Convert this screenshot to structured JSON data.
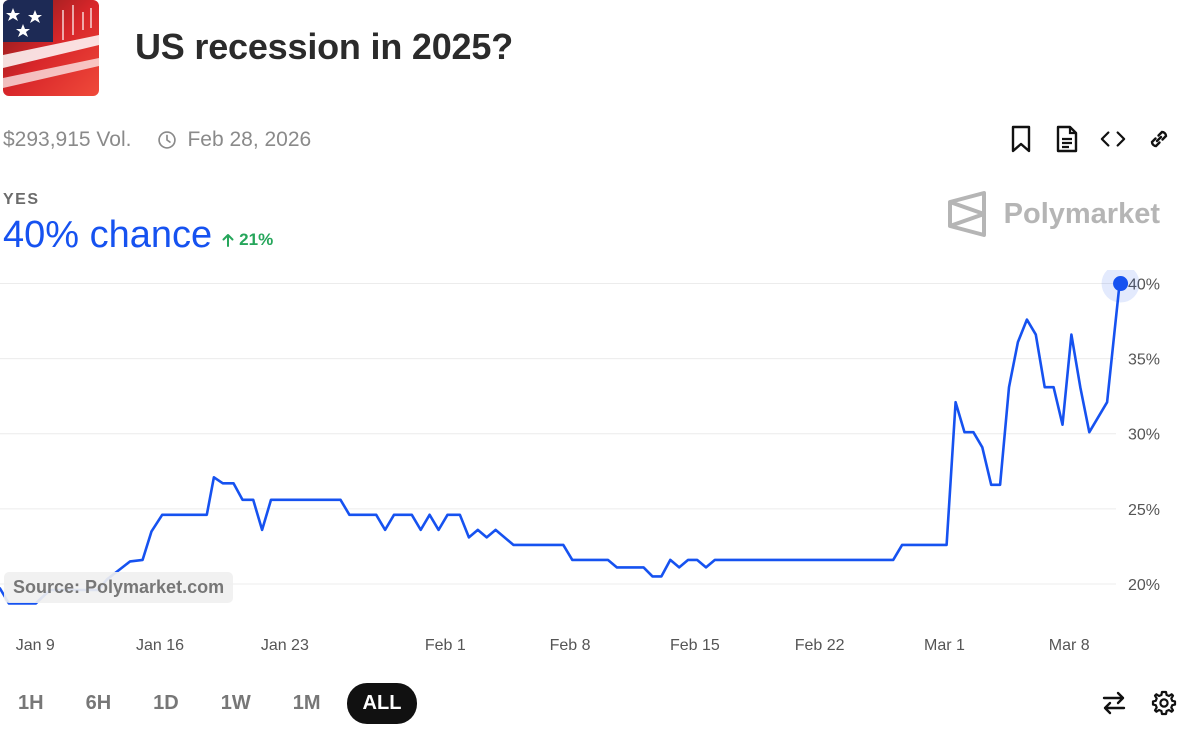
{
  "market": {
    "title": "US recession in 2025?",
    "volume": "$293,915 Vol.",
    "end_date": "Feb 28, 2026"
  },
  "toolbar": {
    "icons": [
      "bookmark-icon",
      "document-icon",
      "code-icon",
      "link-icon"
    ]
  },
  "outcome": {
    "label": "YES",
    "chance": "40% chance",
    "change": "21%",
    "colors": {
      "accent": "#1652f0",
      "positive": "#26a65b"
    }
  },
  "brand": {
    "name": "Polymarket"
  },
  "source": "Source: Polymarket.com",
  "ranges": {
    "items": [
      "1H",
      "6H",
      "1D",
      "1W",
      "1M",
      "ALL"
    ],
    "active": "ALL"
  },
  "bottom_tools": {
    "icons": [
      "swap-icon",
      "settings-icon"
    ]
  },
  "chart_data": {
    "type": "line",
    "y_tick_labels": [
      "20%",
      "25%",
      "30%",
      "35%",
      "40%"
    ],
    "y_ticks": [
      20,
      25,
      30,
      35,
      40
    ],
    "ylim": [
      17.6,
      40.9
    ],
    "x_tick_labels": [
      "Jan 9",
      "Jan 16",
      "Jan 23",
      "Feb 1",
      "Feb 8",
      "Feb 15",
      "Feb 22",
      "Mar 1",
      "Mar 8"
    ],
    "x_tick_days": [
      0,
      7,
      14,
      23,
      30,
      37,
      44,
      51,
      58
    ],
    "xlim_days": [
      -0.8,
      61.8
    ],
    "grid": true,
    "line_color": "#1652f0",
    "series": [
      {
        "points": [
          [
            -0.8,
            19.7
          ],
          [
            -0.3,
            18.7
          ],
          [
            1.2,
            18.7
          ],
          [
            2.0,
            19.6
          ],
          [
            4.7,
            19.6
          ],
          [
            5.2,
            20.3
          ],
          [
            6.5,
            21.5
          ],
          [
            7.2,
            21.6
          ],
          [
            7.7,
            23.5
          ],
          [
            8.3,
            24.6
          ],
          [
            10.4,
            24.6
          ],
          [
            10.8,
            24.6
          ],
          [
            11.2,
            27.1
          ],
          [
            11.7,
            26.7
          ],
          [
            12.3,
            26.7
          ],
          [
            12.8,
            25.6
          ],
          [
            13.4,
            25.6
          ],
          [
            13.9,
            23.6
          ],
          [
            14.4,
            25.6
          ],
          [
            18.3,
            25.6
          ],
          [
            18.8,
            24.6
          ],
          [
            20.3,
            24.6
          ],
          [
            20.8,
            23.6
          ],
          [
            21.3,
            24.6
          ],
          [
            22.3,
            24.6
          ],
          [
            22.8,
            23.6
          ],
          [
            23.3,
            24.6
          ],
          [
            23.8,
            23.6
          ],
          [
            24.3,
            24.6
          ],
          [
            25.0,
            24.6
          ],
          [
            25.5,
            23.1
          ],
          [
            26.0,
            23.6
          ],
          [
            26.5,
            23.1
          ],
          [
            27.0,
            23.6
          ],
          [
            28.0,
            22.6
          ],
          [
            30.8,
            22.6
          ],
          [
            31.3,
            21.6
          ],
          [
            33.3,
            21.6
          ],
          [
            33.8,
            21.1
          ],
          [
            35.3,
            21.1
          ],
          [
            35.8,
            20.5
          ],
          [
            36.3,
            20.5
          ],
          [
            36.8,
            21.6
          ],
          [
            37.3,
            21.1
          ],
          [
            37.8,
            21.6
          ],
          [
            38.3,
            21.6
          ],
          [
            38.8,
            21.1
          ],
          [
            39.3,
            21.6
          ],
          [
            49.3,
            21.6
          ],
          [
            49.8,
            22.6
          ],
          [
            52.3,
            22.6
          ],
          [
            52.8,
            32.1
          ],
          [
            53.3,
            30.1
          ],
          [
            53.8,
            30.1
          ],
          [
            54.3,
            29.1
          ],
          [
            54.8,
            26.6
          ],
          [
            55.3,
            26.6
          ],
          [
            55.8,
            33.1
          ],
          [
            56.3,
            36.1
          ],
          [
            56.8,
            37.6
          ],
          [
            57.3,
            36.6
          ],
          [
            57.8,
            33.1
          ],
          [
            58.3,
            33.1
          ],
          [
            58.8,
            30.6
          ],
          [
            59.3,
            36.6
          ],
          [
            59.8,
            33.1
          ],
          [
            60.3,
            30.1
          ],
          [
            61.3,
            32.1
          ],
          [
            61.7,
            36.6
          ],
          [
            62.0,
            40.0
          ]
        ]
      }
    ],
    "current_value": 40
  }
}
